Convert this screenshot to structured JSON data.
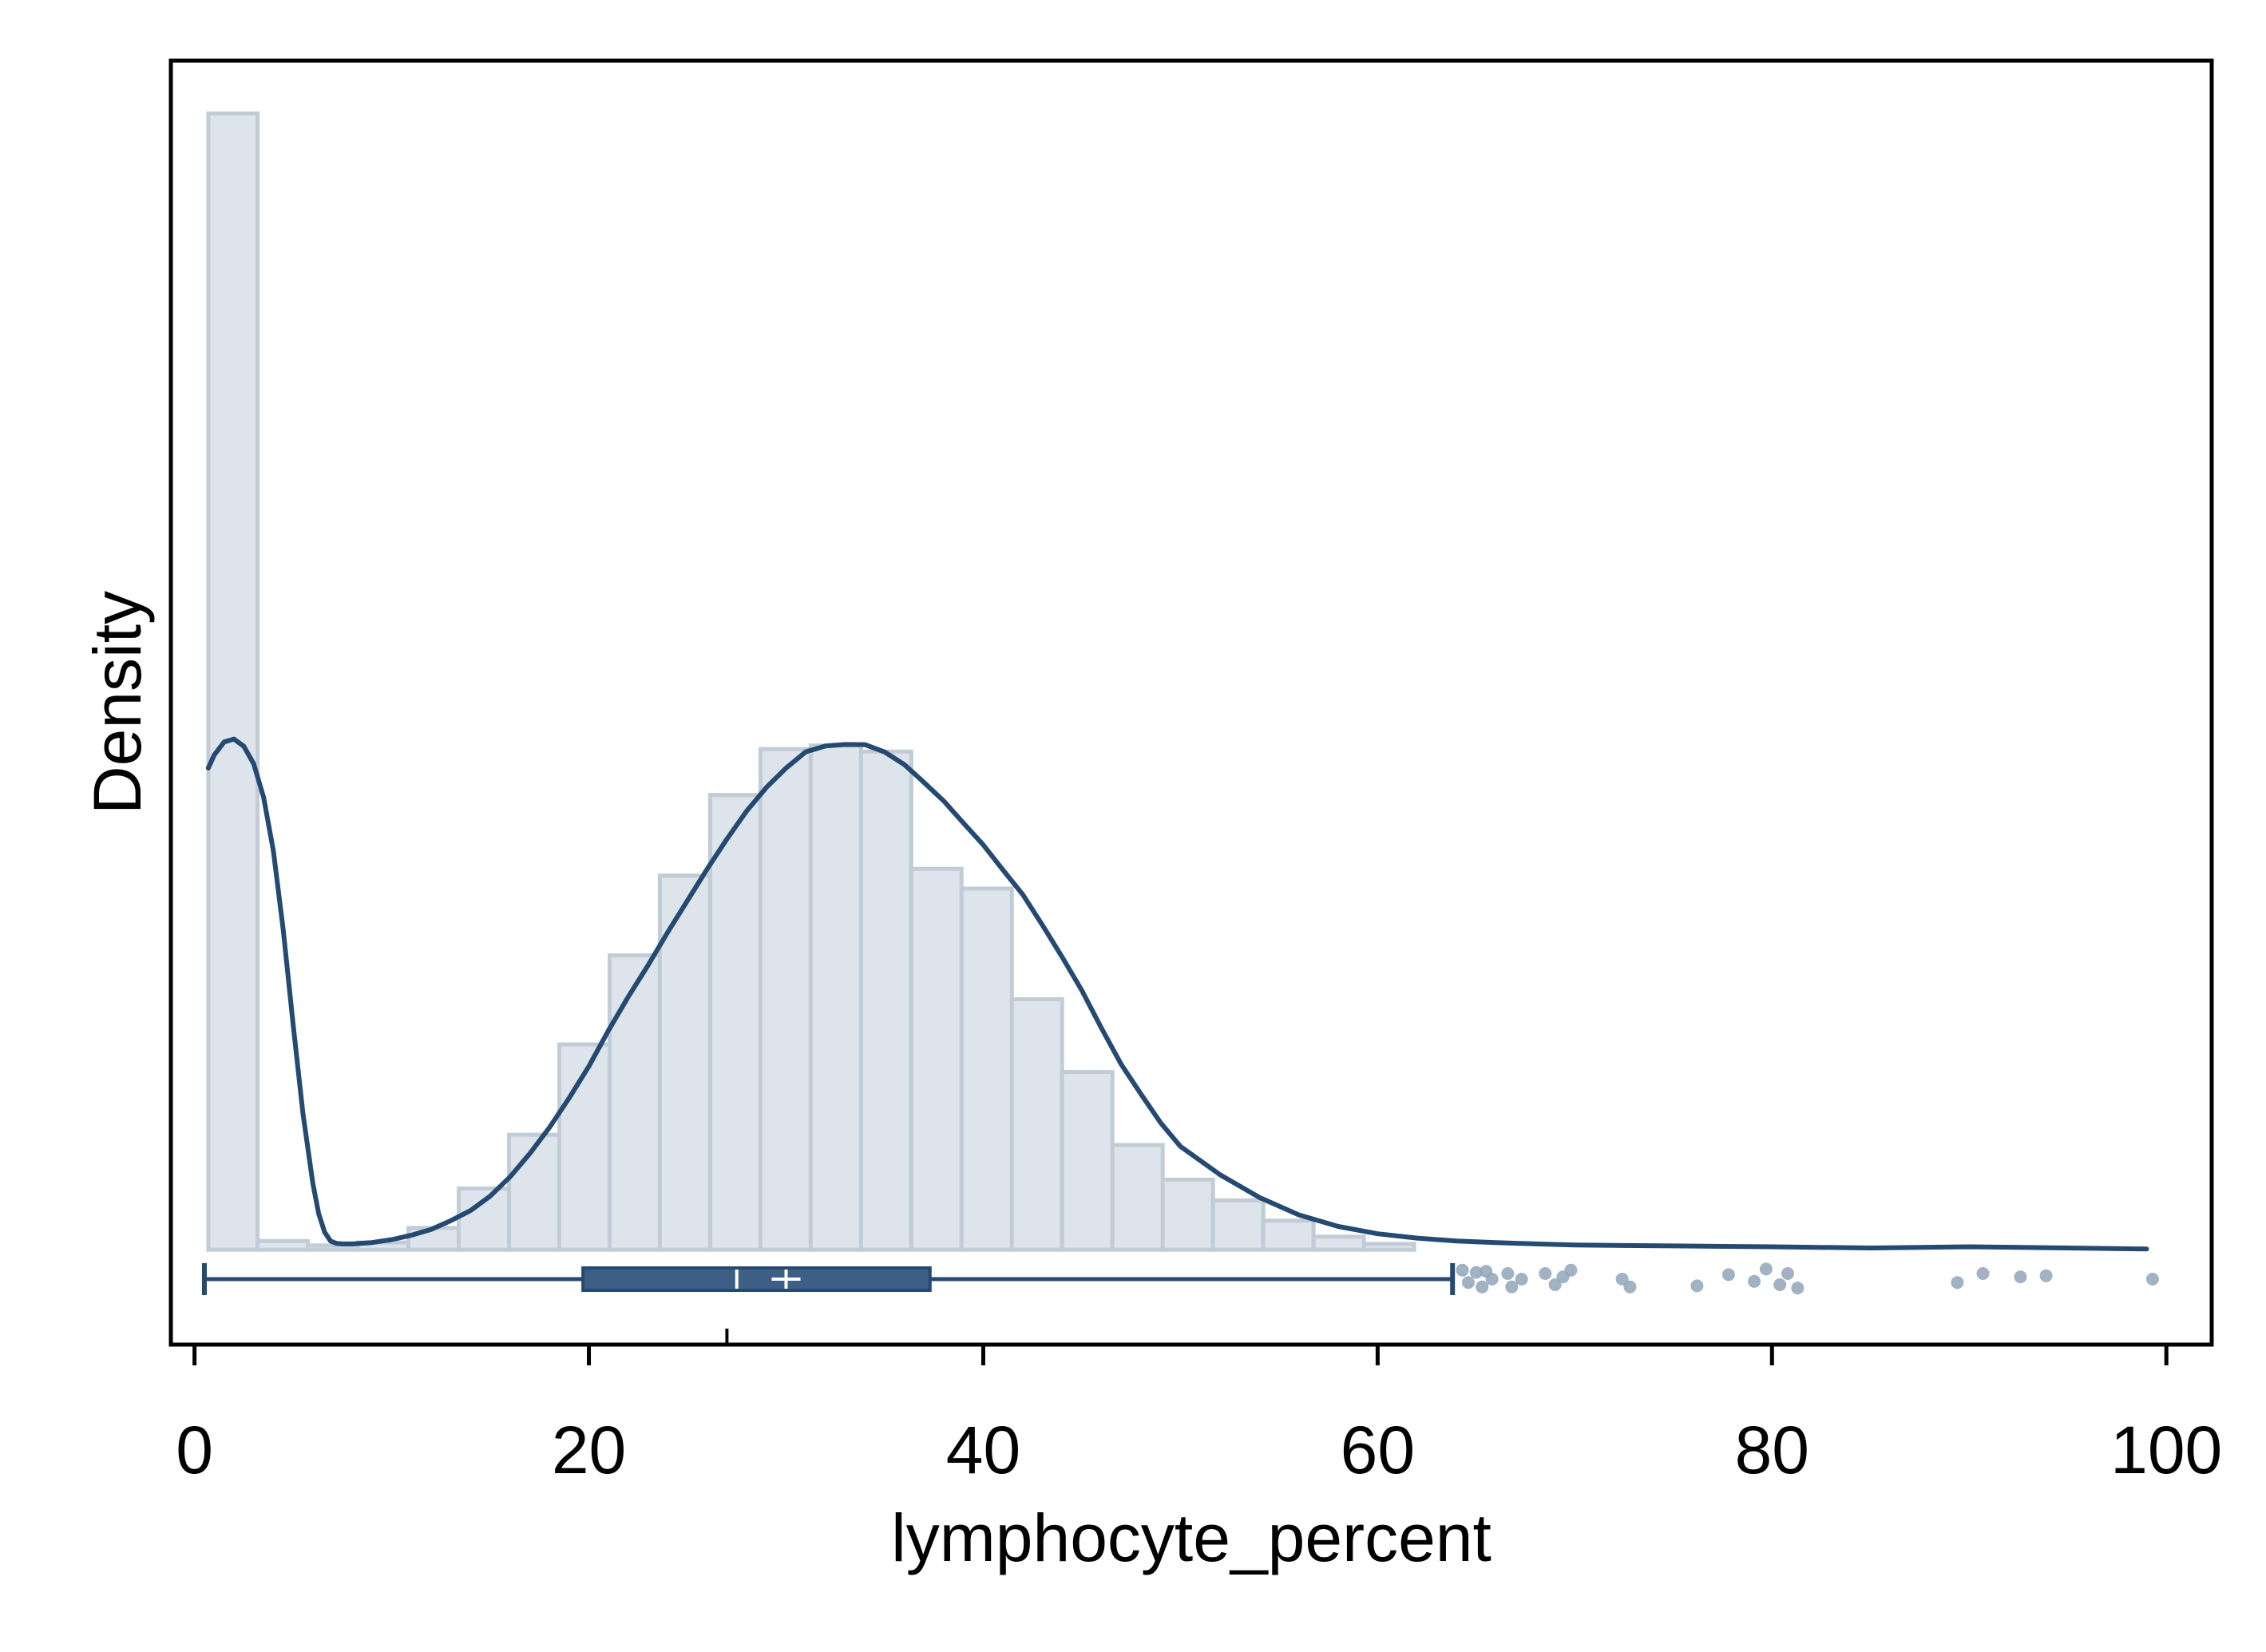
{
  "chart_data": {
    "type": "histogram",
    "title": "",
    "xlabel": "lymphocyte_percent",
    "ylabel": "Density",
    "xlim": [
      -1.2,
      102.3
    ],
    "ylim": [
      -0.075,
      0.94
    ],
    "x_ticks": [
      0,
      20,
      40,
      60,
      80,
      100
    ],
    "grid": false,
    "legend": "none",
    "colors": {
      "hist_fill": "#dde4eb",
      "hist_edge": "#c2ccd6",
      "kde_line": "#254a72",
      "box_fill": "#3e5f85",
      "box_whisker": "#254a72",
      "outlier": "#91a4b8",
      "median_mark": "#ffffff"
    },
    "histogram": {
      "bin_edges": [
        0.7,
        3.2,
        5.75,
        8.3,
        10.85,
        13.4,
        15.95,
        18.5,
        21.05,
        23.6,
        26.15,
        28.7,
        31.25,
        33.8,
        36.35,
        38.9,
        41.45,
        44.0,
        46.55,
        49.1,
        51.65,
        54.2,
        56.75,
        59.3,
        61.85
      ],
      "density": [
        0.8983,
        0.0069,
        0.0034,
        0.0057,
        0.0172,
        0.0484,
        0.0909,
        0.1623,
        0.2327,
        0.2958,
        0.3595,
        0.3958,
        0.3986,
        0.3938,
        0.3011,
        0.2855,
        0.198,
        0.1405,
        0.0828,
        0.0554,
        0.039,
        0.023,
        0.0103,
        0.0046
      ]
    },
    "kde": {
      "x": [
        0.7,
        1.0,
        1.5,
        2.0,
        2.5,
        3.0,
        3.5,
        4.0,
        4.5,
        5.0,
        5.5,
        6.0,
        6.3,
        6.6,
        6.9,
        7.2,
        7.5,
        8,
        9,
        10,
        11,
        12,
        13,
        14,
        15,
        16,
        17,
        18,
        19,
        20,
        21,
        22,
        23,
        24,
        25,
        26,
        27,
        28,
        29,
        30,
        31,
        32,
        33,
        34,
        35,
        36,
        37,
        38,
        39,
        40,
        41,
        42,
        43,
        44,
        45,
        46,
        47,
        48,
        49,
        50,
        52,
        54,
        56,
        58,
        60,
        62,
        64,
        66,
        68,
        70,
        72,
        75,
        80,
        85,
        90,
        95,
        99
      ],
      "y": [
        0.3808,
        0.3911,
        0.4014,
        0.4037,
        0.398,
        0.3842,
        0.3578,
        0.3153,
        0.2524,
        0.1782,
        0.1073,
        0.0526,
        0.0283,
        0.0139,
        0.0069,
        0.005,
        0.0046,
        0.0046,
        0.0057,
        0.008,
        0.0115,
        0.0161,
        0.023,
        0.031,
        0.0425,
        0.0576,
        0.076,
        0.0967,
        0.12,
        0.145,
        0.1735,
        0.2,
        0.2248,
        0.251,
        0.276,
        0.301,
        0.3247,
        0.3468,
        0.3654,
        0.3808,
        0.3936,
        0.3982,
        0.3994,
        0.3993,
        0.3935,
        0.3835,
        0.3693,
        0.3547,
        0.3372,
        0.32,
        0.3002,
        0.2808,
        0.2567,
        0.2314,
        0.205,
        0.175,
        0.1465,
        0.123,
        0.1003,
        0.0817,
        0.0594,
        0.0414,
        0.0276,
        0.0184,
        0.0126,
        0.0092,
        0.0069,
        0.0057,
        0.0046,
        0.0037,
        0.0034,
        0.003,
        0.0023,
        0.0014,
        0.0023,
        0.0014,
        0.0006
      ]
    },
    "boxplot": {
      "whisker_low": 0.5,
      "q1": 19.7,
      "median": 27.5,
      "mean": 30.0,
      "q3": 37.3,
      "whisker_high": 63.8,
      "ref_tick": 27.0,
      "outliers": [
        64.3,
        64.6,
        65.0,
        65.3,
        65.5,
        65.8,
        66.6,
        66.8,
        67.3,
        68.5,
        69.0,
        69.4,
        69.8,
        72.4,
        72.8,
        76.2,
        77.8,
        79.1,
        79.7,
        80.4,
        80.8,
        81.3,
        89.4,
        90.7,
        92.6,
        93.9,
        99.3
      ],
      "outlier_y": [
        0.1,
        0.65,
        0.2,
        0.85,
        0.15,
        0.5,
        0.25,
        0.85,
        0.5,
        0.25,
        0.75,
        0.4,
        0.1,
        0.5,
        0.85,
        0.8,
        0.3,
        0.6,
        0.05,
        0.75,
        0.25,
        0.9,
        0.65,
        0.25,
        0.4,
        0.35,
        0.5
      ]
    }
  }
}
